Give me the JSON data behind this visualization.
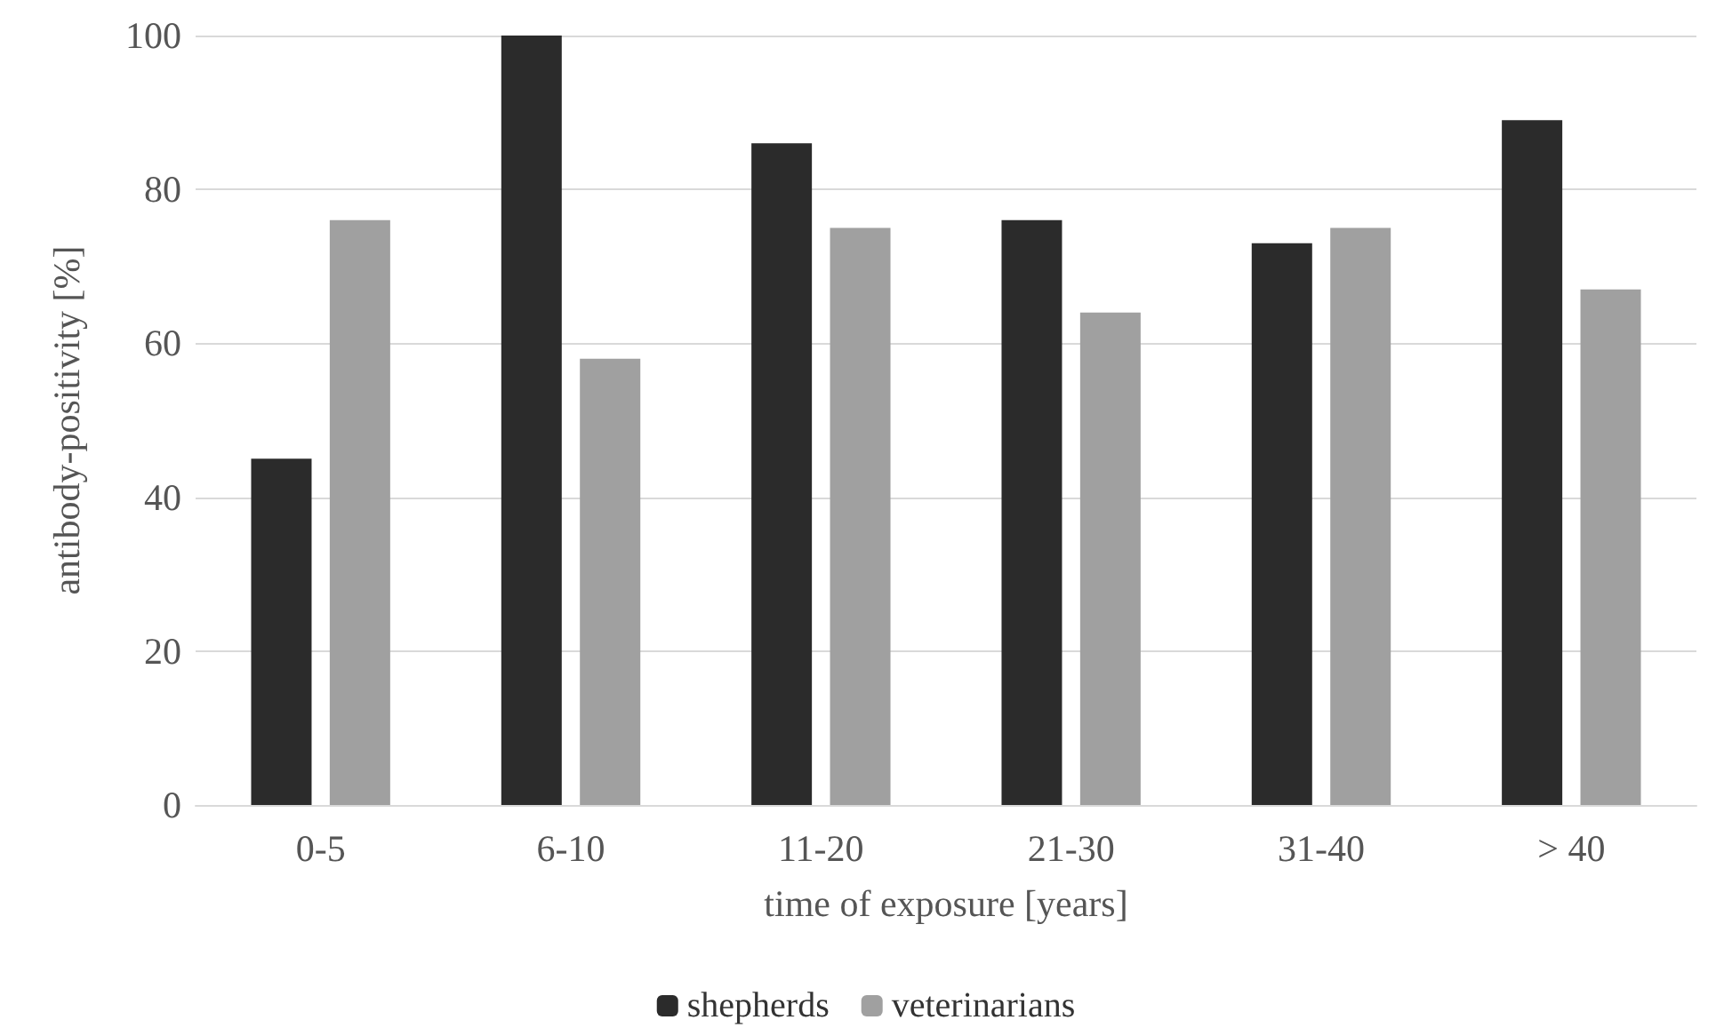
{
  "chart_data": {
    "type": "bar",
    "xlabel": "time of exposure [years]",
    "ylabel": "antibody-positivity [%]",
    "categories": [
      "0-5",
      "6-10",
      "11-20",
      "21-30",
      "31-40",
      "> 40"
    ],
    "series": [
      {
        "name": "shepherds",
        "color": "#2b2b2b",
        "values": [
          45,
          100,
          86,
          76,
          73,
          89
        ]
      },
      {
        "name": "veterinarians",
        "color": "#a0a0a0",
        "values": [
          76,
          58,
          75,
          64,
          75,
          67
        ]
      }
    ],
    "ylim": [
      0,
      100
    ],
    "yticks": [
      0,
      20,
      40,
      60,
      80,
      100
    ],
    "grid": "y",
    "legend": "bottom"
  }
}
